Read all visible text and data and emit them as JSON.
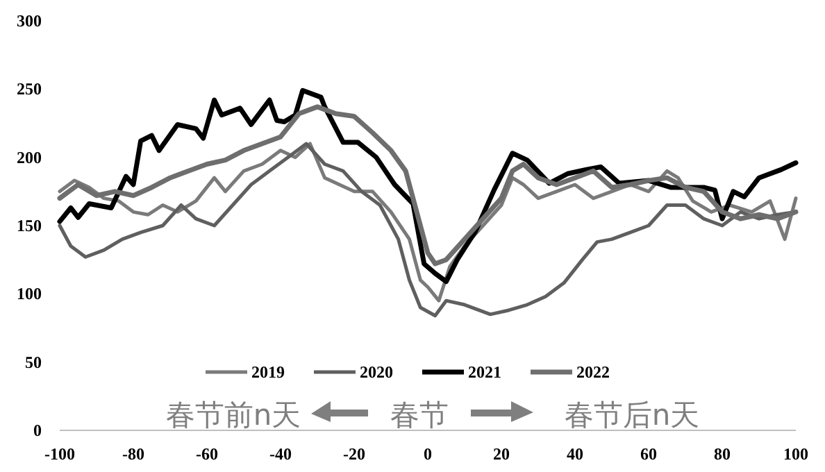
{
  "chart_data": {
    "type": "line",
    "xlim": [
      -100,
      100
    ],
    "xticks": [
      -100,
      -80,
      -60,
      -40,
      -20,
      0,
      20,
      40,
      60,
      80,
      100
    ],
    "ylim": [
      0,
      300
    ],
    "yticks": [
      0,
      50,
      100,
      150,
      200,
      250,
      300
    ],
    "grid": false,
    "legend": "bottom",
    "line_style": "solid",
    "annotations": [
      "春节前n天",
      "春节",
      "春节后n天"
    ],
    "series": [
      {
        "name": "2019",
        "color": "#7a7a7a",
        "x": [
          -100,
          -96,
          -92,
          -88,
          -84,
          -80,
          -76,
          -72,
          -68,
          -63,
          -58,
          -55,
          -50,
          -45,
          -40,
          -36,
          -32,
          -28,
          -24,
          -20,
          -15,
          -10,
          -5,
          -2,
          0,
          3,
          6,
          10,
          15,
          20,
          23,
          26,
          30,
          35,
          40,
          45,
          50,
          55,
          60,
          65,
          68,
          72,
          77,
          82,
          88,
          93,
          97,
          100
        ],
        "values": [
          175,
          183,
          178,
          170,
          168,
          160,
          158,
          165,
          160,
          168,
          185,
          175,
          190,
          195,
          205,
          200,
          210,
          185,
          180,
          175,
          175,
          160,
          140,
          110,
          105,
          95,
          120,
          135,
          150,
          165,
          185,
          180,
          170,
          175,
          180,
          170,
          175,
          180,
          175,
          190,
          185,
          168,
          160,
          165,
          160,
          168,
          140,
          170
        ]
      },
      {
        "name": "2020",
        "color": "#5f5f5f",
        "x": [
          -100,
          -97,
          -93,
          -88,
          -83,
          -78,
          -72,
          -67,
          -63,
          -58,
          -53,
          -48,
          -43,
          -38,
          -33,
          -28,
          -23,
          -18,
          -13,
          -8,
          -5,
          -2,
          2,
          5,
          10,
          17,
          22,
          27,
          32,
          37,
          42,
          46,
          50,
          55,
          60,
          65,
          70,
          75,
          80,
          85,
          90,
          95,
          100
        ],
        "values": [
          150,
          135,
          127,
          132,
          140,
          145,
          150,
          165,
          155,
          150,
          165,
          180,
          190,
          200,
          210,
          195,
          190,
          175,
          165,
          140,
          110,
          90,
          84,
          95,
          92,
          85,
          88,
          92,
          98,
          108,
          125,
          138,
          140,
          145,
          150,
          165,
          165,
          155,
          150,
          160,
          155,
          158,
          160
        ]
      },
      {
        "name": "2021",
        "color": "#000000",
        "x": [
          -100,
          -97,
          -95,
          -92,
          -86,
          -82,
          -80,
          -78,
          -75,
          -73,
          -68,
          -63,
          -61,
          -58,
          -56,
          -51,
          -48,
          -43,
          -41,
          -39,
          -36,
          -34,
          -29,
          -28,
          -23,
          -19,
          -14,
          -9,
          -4,
          -1,
          2,
          5,
          8,
          13,
          18,
          23,
          27,
          33,
          38,
          43,
          47,
          52,
          60,
          66,
          75,
          78,
          80,
          83,
          86,
          90,
          96,
          100
        ],
        "values": [
          153,
          163,
          156,
          166,
          163,
          186,
          180,
          212,
          216,
          205,
          224,
          221,
          214,
          242,
          231,
          236,
          224,
          242,
          227,
          226,
          231,
          249,
          244,
          237,
          211,
          211,
          200,
          180,
          166,
          122,
          115,
          109,
          125,
          146,
          176,
          203,
          198,
          181,
          188,
          191,
          193,
          181,
          183,
          178,
          178,
          176,
          155,
          175,
          171,
          185,
          191,
          196
        ]
      },
      {
        "name": "2022",
        "color": "#6e6e6e",
        "x": [
          -100,
          -95,
          -90,
          -85,
          -80,
          -75,
          -70,
          -65,
          -60,
          -55,
          -50,
          -45,
          -40,
          -35,
          -30,
          -25,
          -20,
          -15,
          -10,
          -6,
          -3,
          0,
          2,
          5,
          10,
          15,
          20,
          23,
          26,
          30,
          35,
          40,
          45,
          50,
          55,
          60,
          65,
          70,
          75,
          80,
          85,
          90,
          95,
          100
        ],
        "values": [
          170,
          180,
          172,
          175,
          172,
          178,
          185,
          190,
          195,
          198,
          205,
          210,
          215,
          232,
          237,
          232,
          230,
          218,
          205,
          190,
          160,
          130,
          122,
          125,
          140,
          155,
          170,
          190,
          195,
          185,
          180,
          185,
          190,
          178,
          180,
          183,
          185,
          178,
          175,
          160,
          155,
          158,
          155,
          160
        ]
      }
    ]
  }
}
